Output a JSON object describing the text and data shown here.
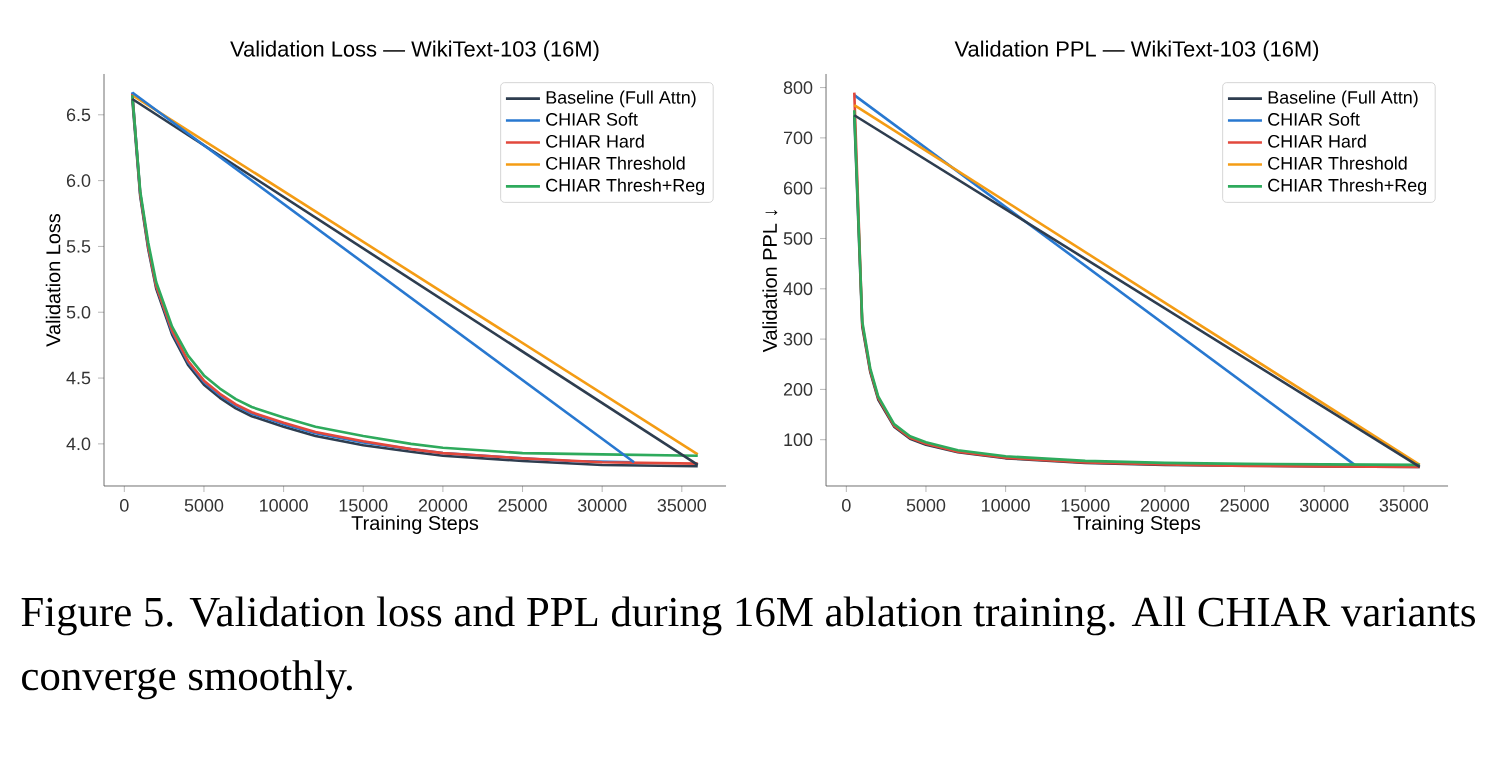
{
  "chart_data": [
    {
      "type": "line",
      "title": "Validation Loss — WikiText-103 (16M)",
      "xlabel": "Training Steps",
      "ylabel": "Validation Loss",
      "legend": "top right",
      "xlim": [
        -1275,
        37775
      ],
      "ylim": [
        3.68,
        6.81
      ],
      "xticks": [
        0,
        5000,
        10000,
        15000,
        20000,
        25000,
        30000,
        35000
      ],
      "yticks": [
        {
          "value": 4,
          "label": "4.0"
        },
        4.5,
        {
          "value": 5,
          "label": "5.0"
        },
        5.5,
        {
          "value": 6,
          "label": "6.0"
        },
        6.5
      ],
      "annotations": [
        "Figure 5. Validation loss and PPL during 16M ablation training. All CHIAR variants converge smoothly."
      ],
      "series": [
        {
          "name": "Baseline (Full Attn)",
          "color": "#2e3d4f",
          "x": [
            500,
            1000,
            1500,
            2000,
            3000,
            4000,
            5000,
            6000,
            7000,
            8000,
            10000,
            12000,
            15000,
            18000,
            20000,
            25000,
            30000,
            36000
          ],
          "values": [
            6.62,
            5.88,
            5.48,
            5.18,
            4.83,
            4.6,
            4.45,
            4.35,
            4.27,
            4.21,
            4.13,
            4.06,
            3.99,
            3.94,
            3.91,
            3.87,
            3.84,
            3.83
          ]
        },
        {
          "name": "CHIAR Soft",
          "color": "#2878d0",
          "x": [
            500,
            1000,
            1500,
            2000,
            3000,
            4000,
            5000,
            6000,
            7000,
            8000,
            10000,
            12000,
            15000,
            18000,
            20000,
            25000,
            28000,
            32000
          ],
          "values": [
            6.67,
            5.9,
            5.5,
            5.2,
            4.85,
            4.62,
            4.47,
            4.37,
            4.29,
            4.23,
            4.15,
            4.08,
            4.01,
            3.96,
            3.93,
            3.89,
            3.87,
            3.86
          ]
        },
        {
          "name": "CHIAR Hard",
          "color": "#e2483c",
          "x": [
            500,
            1000,
            1500,
            2000,
            3000,
            4000,
            5000,
            6000,
            7000,
            8000,
            10000,
            12000,
            15000,
            18000,
            20000,
            25000,
            30000,
            36000
          ],
          "values": [
            6.66,
            5.9,
            5.5,
            5.2,
            4.86,
            4.63,
            4.48,
            4.38,
            4.3,
            4.24,
            4.16,
            4.09,
            4.02,
            3.96,
            3.93,
            3.89,
            3.86,
            3.85
          ]
        },
        {
          "name": "CHIAR Threshold",
          "color": "#f49c14",
          "x": [
            500,
            36000
          ],
          "values": [
            6.65,
            3.92
          ]
        },
        {
          "name": "CHIAR Thresh+Reg",
          "color": "#2eaa5c",
          "x": [
            500,
            1000,
            1500,
            2000,
            3000,
            4000,
            5000,
            6000,
            7000,
            8000,
            10000,
            12000,
            15000,
            18000,
            20000,
            25000,
            30000,
            36000
          ],
          "values": [
            6.65,
            5.92,
            5.53,
            5.23,
            4.89,
            4.67,
            4.52,
            4.42,
            4.34,
            4.28,
            4.2,
            4.13,
            4.06,
            4.0,
            3.97,
            3.93,
            3.92,
            3.91
          ]
        },
        {
          "color": "#2e3d4f",
          "x": [
            500,
            36000
          ],
          "values": [
            6.62,
            3.84
          ]
        },
        {
          "color": "#2878d0",
          "x": [
            500,
            32000
          ],
          "values": [
            6.67,
            3.86
          ]
        }
      ]
    },
    {
      "type": "line",
      "title": "Validation PPL — WikiText-103 (16M)",
      "xlabel": "Training Steps",
      "ylabel": "Validation PPL ↓",
      "legend": "top right",
      "xlim": [
        -1275,
        37775
      ],
      "ylim": [
        8,
        827
      ],
      "xticks": [
        0,
        5000,
        10000,
        15000,
        20000,
        25000,
        30000,
        35000
      ],
      "yticks": [
        100,
        200,
        300,
        400,
        500,
        600,
        700,
        800
      ],
      "series": [
        {
          "name": "Baseline (Full Attn)",
          "color": "#2e3d4f",
          "x": [
            500,
            1000,
            1500,
            2000,
            3000,
            4000,
            5000,
            7000,
            10000,
            15000,
            20000,
            25000,
            30000,
            36000
          ],
          "values": [
            745,
            325,
            235,
            180,
            126,
            102,
            90,
            75,
            63,
            54,
            50,
            null,
            47,
            46
          ]
        },
        {
          "name": "CHIAR Soft",
          "color": "#2878d0",
          "x": [
            500,
            32000
          ],
          "values": [
            785,
            48
          ]
        },
        {
          "name": "CHIAR Hard",
          "color": "#e2483c",
          "x": [
            500,
            1000,
            1500,
            2000,
            3000,
            4000,
            5000,
            7000,
            10000,
            15000,
            20000,
            25000,
            30000,
            36000
          ],
          "values": [
            790,
            330,
            238,
            183,
            128,
            104,
            92,
            76,
            64,
            55,
            51,
            48,
            47,
            46
          ]
        },
        {
          "name": "CHIAR Threshold",
          "color": "#f49c14",
          "x": [
            500,
            36000
          ],
          "values": [
            765,
            50
          ]
        },
        {
          "name": "CHIAR Thresh+Reg",
          "color": "#2eaa5c",
          "x": [
            500,
            1000,
            1500,
            2000,
            3000,
            4000,
            5000,
            7000,
            10000,
            15000,
            20000,
            25000,
            30000,
            36000
          ],
          "values": [
            755,
            335,
            242,
            186,
            131,
            107,
            95,
            79,
            67,
            58,
            54,
            52,
            51,
            50
          ]
        },
        {
          "color": "#2e3d4f",
          "x": [
            500,
            36000
          ],
          "values": [
            745,
            46
          ]
        }
      ]
    }
  ]
}
